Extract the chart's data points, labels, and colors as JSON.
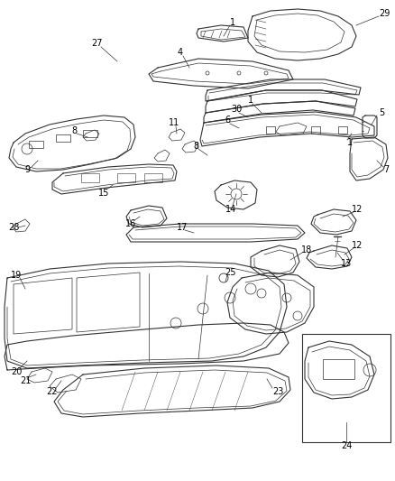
{
  "bg_color": "#ffffff",
  "line_color": "#333333",
  "label_color": "#000000",
  "label_fontsize": 6.5,
  "fig_width": 4.38,
  "fig_height": 5.33,
  "dpi": 100
}
